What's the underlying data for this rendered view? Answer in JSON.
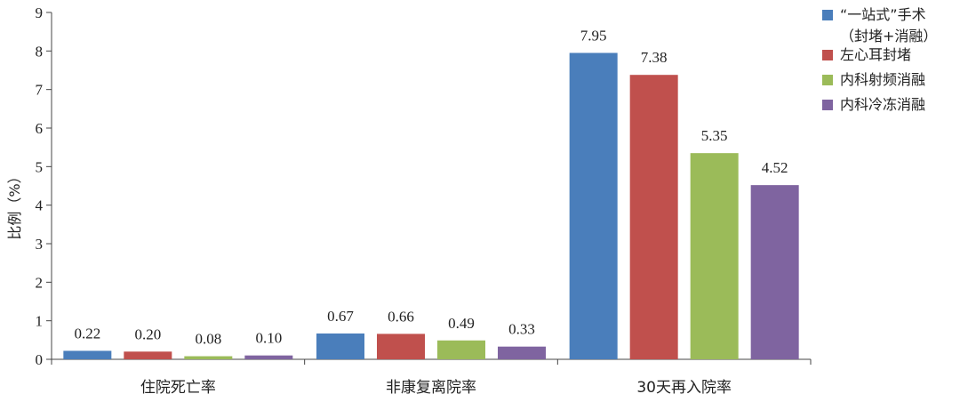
{
  "chart_data": {
    "type": "bar",
    "title": "",
    "xlabel": "",
    "ylabel": "比例（%）",
    "ylim": [
      0,
      9
    ],
    "yticks": [
      0,
      1,
      2,
      3,
      4,
      5,
      6,
      7,
      8,
      9
    ],
    "grid": false,
    "legend_position": "top-right",
    "categories": [
      "住院死亡率",
      "非康复离院率",
      "30天再入院率"
    ],
    "series": [
      {
        "name": "“一站式”手术（封堵+消融）",
        "legend_lines": [
          "“一站式”手术",
          "（封堵+消融）"
        ],
        "color": "#4A7EBB",
        "values": [
          0.22,
          0.67,
          7.95
        ],
        "labels": [
          "0.22",
          "0.67",
          "7.95"
        ]
      },
      {
        "name": "左心耳封堵",
        "legend_lines": [
          "左心耳封堵"
        ],
        "color": "#C0504D",
        "values": [
          0.2,
          0.66,
          7.38
        ],
        "labels": [
          "0.20",
          "0.66",
          "7.38"
        ]
      },
      {
        "name": "内科射频消融",
        "legend_lines": [
          "内科射频消融"
        ],
        "color": "#9BBB59",
        "values": [
          0.08,
          0.49,
          5.35
        ],
        "labels": [
          "0.08",
          "0.49",
          "5.35"
        ]
      },
      {
        "name": "内科冷冻消融",
        "legend_lines": [
          "内科冷冻消融"
        ],
        "color": "#7F64A0",
        "values": [
          0.1,
          0.33,
          4.52
        ],
        "labels": [
          "0.10",
          "0.33",
          "4.52"
        ]
      }
    ]
  }
}
